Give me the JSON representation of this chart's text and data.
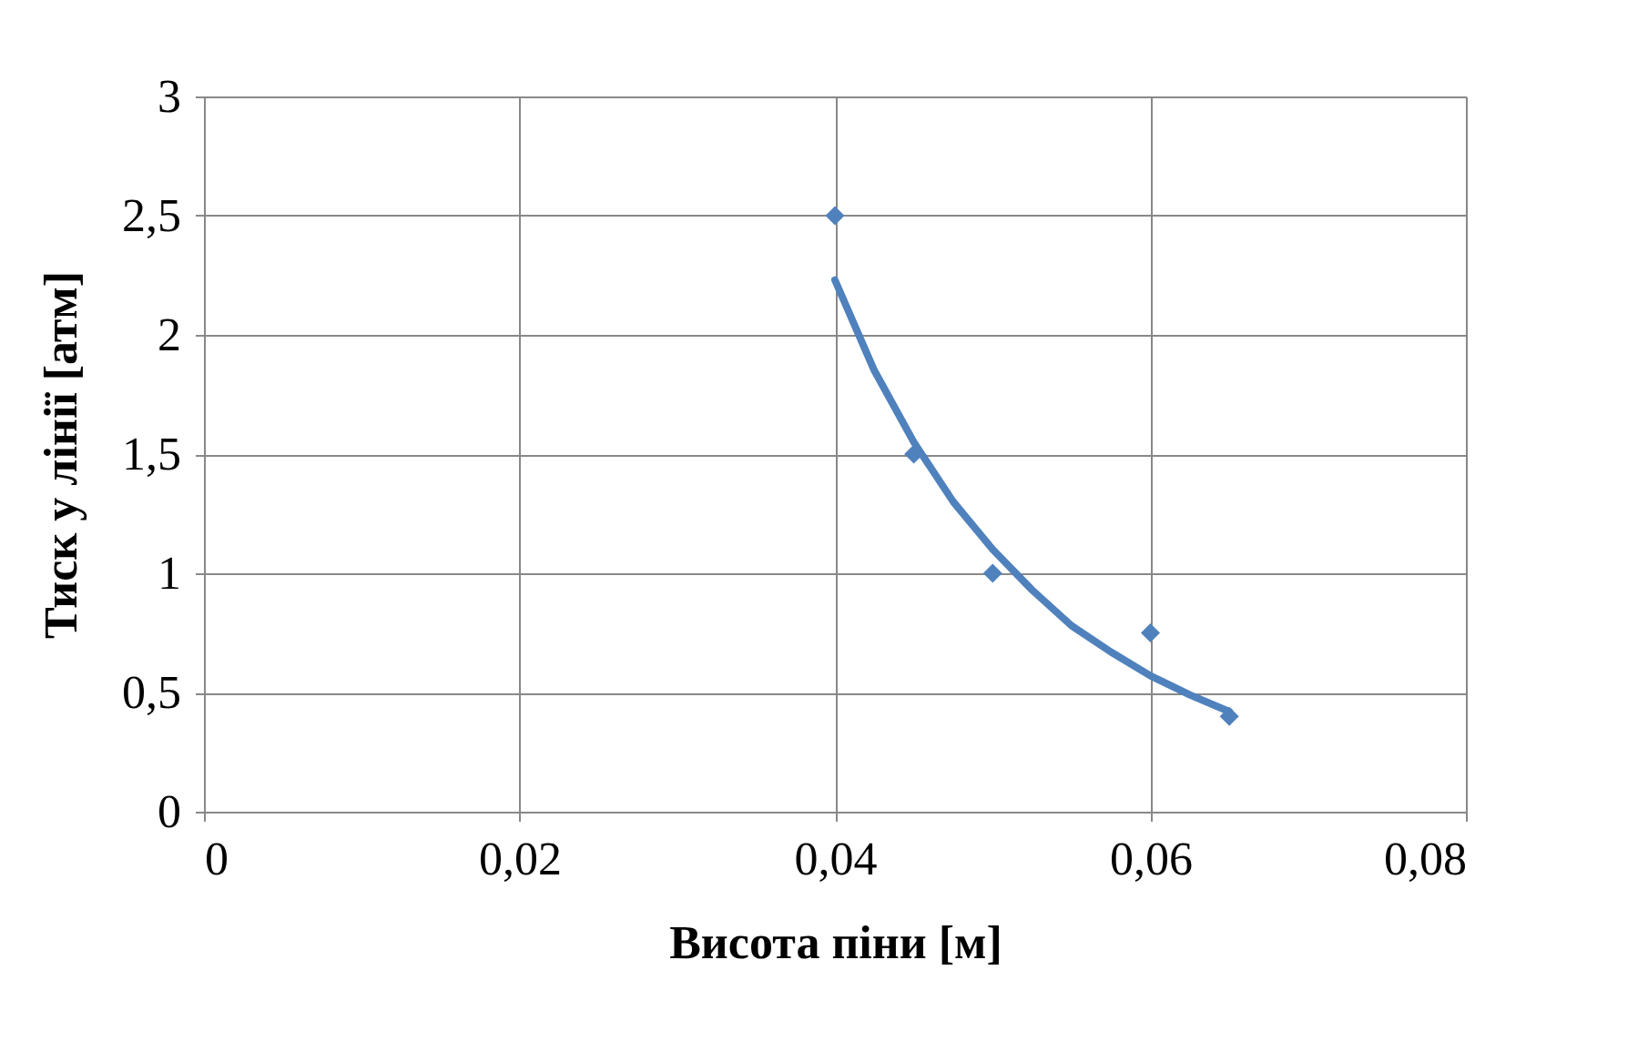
{
  "chart_data": {
    "type": "scatter",
    "xlabel": "Висота піни [м]",
    "ylabel": "Тиск у лінії [атм]",
    "xlim": [
      0,
      0.08
    ],
    "ylim": [
      0,
      3
    ],
    "xticks": [
      0,
      {
        "value": 0.02,
        "label": "0,02"
      },
      {
        "value": 0.04,
        "label": "0,04"
      },
      {
        "value": 0.06,
        "label": "0,06"
      },
      {
        "value": 0.08,
        "label": "0,08"
      }
    ],
    "yticks": [
      0,
      {
        "value": 0.5,
        "label": "0,5"
      },
      1,
      {
        "value": 1.5,
        "label": "1,5"
      },
      2,
      {
        "value": 2.5,
        "label": "2,5"
      },
      3
    ],
    "grid": true,
    "legend": false,
    "marker": "diamond",
    "series": [
      {
        "color": "#4f81bd",
        "x": [
          0.04,
          0.045,
          0.05,
          0.06,
          0.065
        ],
        "values": [
          2.5,
          1.5,
          1.0,
          0.75,
          0.4
        ]
      },
      {
        "type": "line",
        "color": "#4f81bd",
        "marker": "none",
        "line_style": "solid",
        "x": [
          0.04,
          0.0425,
          0.045,
          0.0475,
          0.05,
          0.0525,
          0.055,
          0.0575,
          0.06,
          0.0625,
          0.065
        ],
        "values": [
          2.23,
          1.85,
          1.55,
          1.3,
          1.1,
          0.93,
          0.78,
          0.67,
          0.57,
          0.49,
          0.42
        ]
      }
    ]
  }
}
